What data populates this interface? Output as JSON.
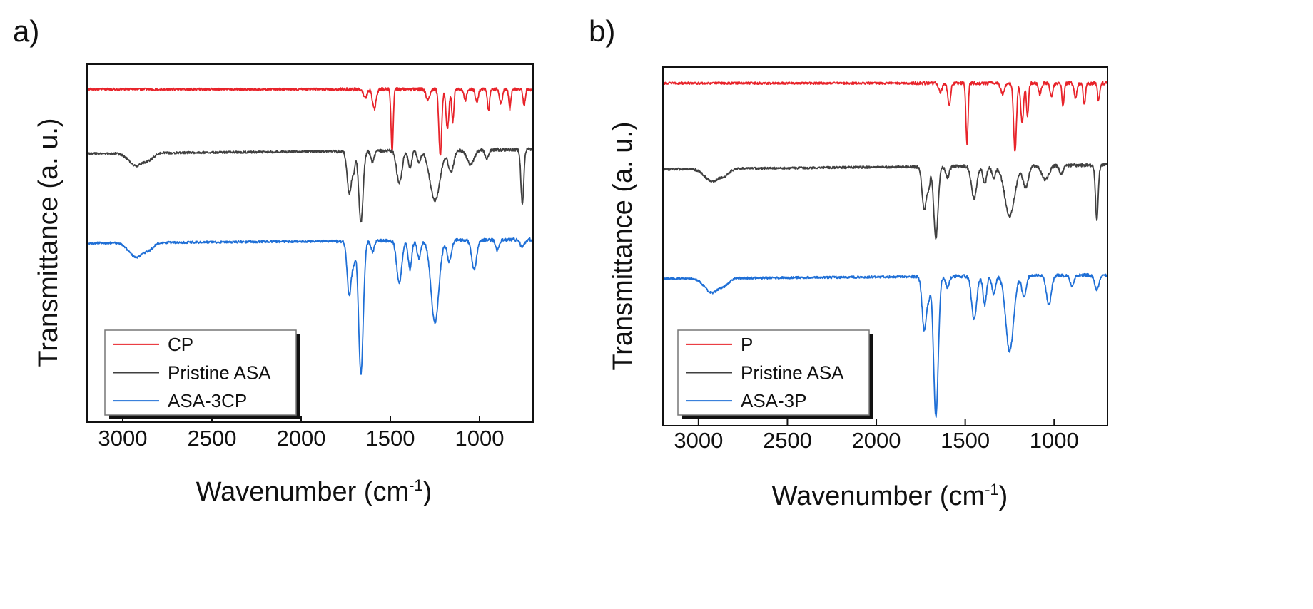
{
  "chart_data": [
    {
      "type": "line",
      "panel_label": "a)",
      "xlabel": "Wavenumber (cm",
      "xlabel_sup": "-1",
      "xlabel_end": ")",
      "ylabel": "Transmittance (a. u.)",
      "xlim": [
        3200,
        700
      ],
      "xticks": [
        3000,
        2500,
        2000,
        1500,
        1000
      ],
      "legend_position": "bottom-left",
      "series": [
        {
          "name": "CP",
          "color": "#e8232a",
          "baseline": 0.07,
          "slope": 0,
          "peaks": [
            [
              1590,
              0.055,
              10
            ],
            [
              1490,
              0.175,
              6
            ],
            [
              1640,
              0.025,
              10
            ],
            [
              1290,
              0.03,
              10
            ],
            [
              1220,
              0.185,
              8
            ],
            [
              1180,
              0.11,
              8
            ],
            [
              1150,
              0.09,
              6
            ],
            [
              1080,
              0.03,
              8
            ],
            [
              1015,
              0.035,
              8
            ],
            [
              950,
              0.06,
              6
            ],
            [
              880,
              0.04,
              8
            ],
            [
              830,
              0.055,
              6
            ],
            [
              750,
              0.045,
              6
            ]
          ]
        },
        {
          "name": "Pristine ASA",
          "color": "#404040",
          "baseline": 0.25,
          "slope": -0.012,
          "peaks": [
            [
              2925,
              0.035,
              40
            ],
            [
              2850,
              0.015,
              25
            ],
            [
              1730,
              0.12,
              12
            ],
            [
              1705,
              0.05,
              8
            ],
            [
              1665,
              0.2,
              12
            ],
            [
              1600,
              0.03,
              10
            ],
            [
              1450,
              0.09,
              15
            ],
            [
              1390,
              0.05,
              10
            ],
            [
              1340,
              0.035,
              10
            ],
            [
              1250,
              0.14,
              28
            ],
            [
              1160,
              0.06,
              15
            ],
            [
              1050,
              0.04,
              20
            ],
            [
              960,
              0.025,
              10
            ],
            [
              760,
              0.15,
              8
            ]
          ]
        },
        {
          "name": "ASA-3CP",
          "color": "#1f6fd6",
          "baseline": 0.5,
          "slope": -0.01,
          "peaks": [
            [
              2925,
              0.04,
              40
            ],
            [
              2850,
              0.015,
              25
            ],
            [
              1730,
              0.15,
              12
            ],
            [
              1705,
              0.05,
              8
            ],
            [
              1665,
              0.37,
              13
            ],
            [
              1600,
              0.03,
              10
            ],
            [
              1450,
              0.12,
              14
            ],
            [
              1390,
              0.08,
              10
            ],
            [
              1340,
              0.05,
              10
            ],
            [
              1250,
              0.23,
              22
            ],
            [
              1170,
              0.06,
              12
            ],
            [
              1030,
              0.08,
              14
            ],
            [
              900,
              0.03,
              10
            ],
            [
              760,
              0.02,
              12
            ]
          ]
        }
      ]
    },
    {
      "type": "line",
      "panel_label": "b)",
      "xlabel": "Wavenumber (cm",
      "xlabel_sup": "-1",
      "xlabel_end": ")",
      "ylabel": "Transmittance (a. u.)",
      "xlim": [
        3200,
        700
      ],
      "xticks": [
        3000,
        2500,
        2000,
        1500,
        1000
      ],
      "legend_position": "bottom-left",
      "series": [
        {
          "name": "P",
          "color": "#e8232a",
          "baseline": 0.045,
          "slope": 0,
          "peaks": [
            [
              1640,
              0.025,
              10
            ],
            [
              1590,
              0.06,
              8
            ],
            [
              1490,
              0.17,
              6
            ],
            [
              1290,
              0.03,
              10
            ],
            [
              1220,
              0.19,
              8
            ],
            [
              1180,
              0.11,
              8
            ],
            [
              1150,
              0.09,
              6
            ],
            [
              1080,
              0.03,
              8
            ],
            [
              1015,
              0.035,
              8
            ],
            [
              950,
              0.065,
              6
            ],
            [
              880,
              0.04,
              8
            ],
            [
              830,
              0.06,
              6
            ],
            [
              750,
              0.05,
              6
            ]
          ]
        },
        {
          "name": "Pristine ASA",
          "color": "#404040",
          "baseline": 0.285,
          "slope": -0.012,
          "peaks": [
            [
              2925,
              0.035,
              40
            ],
            [
              2850,
              0.015,
              25
            ],
            [
              1730,
              0.12,
              12
            ],
            [
              1705,
              0.05,
              8
            ],
            [
              1665,
              0.2,
              12
            ],
            [
              1600,
              0.03,
              10
            ],
            [
              1450,
              0.09,
              15
            ],
            [
              1390,
              0.05,
              10
            ],
            [
              1340,
              0.035,
              10
            ],
            [
              1250,
              0.14,
              28
            ],
            [
              1160,
              0.06,
              15
            ],
            [
              1050,
              0.04,
              20
            ],
            [
              960,
              0.025,
              10
            ],
            [
              760,
              0.15,
              8
            ]
          ]
        },
        {
          "name": "ASA-3P",
          "color": "#1f6fd6",
          "baseline": 0.59,
          "slope": -0.01,
          "peaks": [
            [
              2925,
              0.04,
              40
            ],
            [
              2850,
              0.015,
              25
            ],
            [
              1730,
              0.15,
              12
            ],
            [
              1705,
              0.05,
              8
            ],
            [
              1665,
              0.39,
              13
            ],
            [
              1600,
              0.03,
              10
            ],
            [
              1450,
              0.12,
              14
            ],
            [
              1390,
              0.08,
              10
            ],
            [
              1340,
              0.05,
              10
            ],
            [
              1250,
              0.21,
              22
            ],
            [
              1170,
              0.06,
              12
            ],
            [
              1030,
              0.08,
              14
            ],
            [
              900,
              0.03,
              10
            ],
            [
              760,
              0.04,
              12
            ]
          ]
        }
      ]
    }
  ]
}
